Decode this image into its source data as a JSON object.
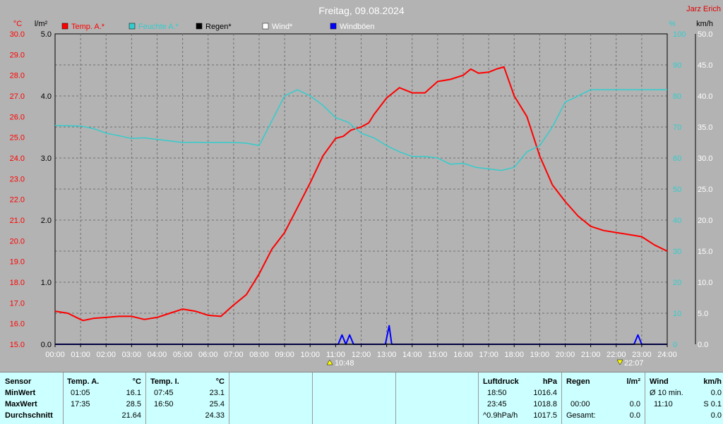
{
  "header": {
    "title": "Freitag, 09.08.2024",
    "author": "Jarz Erich",
    "unit_temp": "°C",
    "unit_rain": "l/m²",
    "unit_humidity": "%",
    "unit_wind": "km/h"
  },
  "legend": [
    {
      "label": "Temp. A.*",
      "color": "#ff0000"
    },
    {
      "label": "Feuchte A.*",
      "color": "#33cccc"
    },
    {
      "label": "Regen*",
      "color": "#000000"
    },
    {
      "label": "Wind*",
      "color": "#ffffff"
    },
    {
      "label": "Windböen",
      "color": "#0000ff"
    }
  ],
  "markers": {
    "sunrise": "10:48",
    "sunset": "22:07"
  },
  "chart_data": {
    "type": "line",
    "title": "Freitag, 09.08.2024",
    "x_ticks": [
      "00:00",
      "01:00",
      "02:00",
      "03:00",
      "04:00",
      "05:00",
      "06:00",
      "07:00",
      "08:00",
      "09:00",
      "10:00",
      "11:00",
      "12:00",
      "13:00",
      "14:00",
      "15:00",
      "16:00",
      "17:00",
      "18:00",
      "19:00",
      "20:00",
      "21:00",
      "22:00",
      "23:00",
      "24:00"
    ],
    "xlim": [
      0,
      24
    ],
    "axes": {
      "temp": {
        "label": "°C",
        "ylim": [
          15,
          30
        ],
        "ticks": [
          "15.0",
          "16.0",
          "17.0",
          "18.0",
          "19.0",
          "20.0",
          "21.0",
          "22.0",
          "23.0",
          "24.0",
          "25.0",
          "26.0",
          "27.0",
          "28.0",
          "29.0",
          "30.0"
        ]
      },
      "rain": {
        "label": "l/m²",
        "ylim": [
          0,
          5
        ],
        "ticks": [
          "0.0",
          "1.0",
          "2.0",
          "3.0",
          "4.0",
          "5.0"
        ]
      },
      "humidity": {
        "label": "%",
        "ylim": [
          0,
          100
        ],
        "ticks": [
          "0",
          "10",
          "20",
          "30",
          "40",
          "50",
          "60",
          "70",
          "80",
          "90",
          "100"
        ]
      },
      "wind": {
        "label": "km/h",
        "ylim": [
          0,
          50
        ],
        "ticks": [
          "0.0",
          "5.0",
          "10.0",
          "15.0",
          "20.0",
          "25.0",
          "30.0",
          "35.0",
          "40.0",
          "45.0",
          "50.0"
        ]
      }
    },
    "grid": true,
    "series": [
      {
        "name": "Temp. A.*",
        "axis": "temp",
        "color": "#ff0000",
        "x": [
          0,
          0.5,
          1,
          1.1,
          1.5,
          2,
          2.5,
          3,
          3.5,
          4,
          4.5,
          5,
          5.5,
          6,
          6.5,
          7,
          7.5,
          8,
          8.5,
          9,
          9.5,
          10,
          10.5,
          11,
          11.3,
          11.6,
          12,
          12.3,
          12.5,
          13,
          13.5,
          14,
          14.5,
          15,
          15.5,
          16,
          16.3,
          16.6,
          17,
          17.3,
          17.6,
          18,
          18.5,
          19,
          19.5,
          20,
          20.5,
          21,
          21.5,
          22,
          22.5,
          23,
          23.5,
          24
        ],
        "y": [
          16.6,
          16.5,
          16.2,
          16.15,
          16.25,
          16.3,
          16.35,
          16.35,
          16.2,
          16.3,
          16.5,
          16.7,
          16.6,
          16.4,
          16.35,
          16.9,
          17.4,
          18.4,
          19.6,
          20.4,
          21.6,
          22.8,
          24.1,
          24.95,
          25.05,
          25.35,
          25.5,
          25.7,
          26.1,
          26.9,
          27.4,
          27.15,
          27.15,
          27.7,
          27.8,
          28.0,
          28.3,
          28.1,
          28.15,
          28.3,
          28.4,
          27.0,
          26.0,
          24.1,
          22.7,
          21.9,
          21.2,
          20.7,
          20.5,
          20.4,
          20.3,
          20.2,
          19.8,
          19.5
        ]
      },
      {
        "name": "Feuchte A.*",
        "axis": "humidity",
        "color": "#33cccc",
        "x": [
          0,
          1,
          1.5,
          2,
          2.5,
          3,
          3.5,
          4,
          4.5,
          5,
          5.5,
          6,
          6.5,
          7,
          7.5,
          8,
          8.5,
          9,
          9.5,
          10,
          10.5,
          11,
          11.5,
          12,
          12.5,
          13,
          13.5,
          14,
          14.5,
          15,
          15.5,
          16,
          16.5,
          17,
          17.5,
          18,
          18.5,
          19,
          19.5,
          20,
          20.5,
          21,
          21.5,
          22,
          22.5,
          23,
          23.5,
          24
        ],
        "y": [
          70.5,
          70.3,
          69.5,
          68,
          67.2,
          66.3,
          66.5,
          66,
          65.5,
          65,
          65.1,
          65,
          65,
          65,
          64.8,
          64,
          72,
          80,
          82,
          80,
          77,
          73,
          71.5,
          68,
          66.5,
          64,
          62,
          60.5,
          60.5,
          60,
          58,
          58.3,
          57,
          56.5,
          56,
          57,
          62,
          64,
          70,
          78,
          80,
          82,
          82,
          82,
          82,
          82,
          82,
          82
        ]
      },
      {
        "name": "Windböen",
        "axis": "wind",
        "color": "#0000ff",
        "x": [
          0,
          10.95,
          11.1,
          11.25,
          11.4,
          11.55,
          11.7,
          11.85,
          12.0,
          12.95,
          13.1,
          13.2,
          13.35,
          22.7,
          22.85,
          23.0,
          24
        ],
        "y": [
          0,
          0,
          0,
          1.5,
          0,
          1.5,
          0,
          0,
          0,
          0,
          3.0,
          0,
          0,
          0,
          1.5,
          0,
          0
        ]
      },
      {
        "name": "Regen*",
        "axis": "rain",
        "color": "#000000",
        "x": [
          0,
          24
        ],
        "y": [
          0,
          0
        ]
      }
    ]
  },
  "table": {
    "sensor_header": "Sensor",
    "row_labels": [
      "MinWert",
      "MaxWert",
      "Durchschnitt"
    ],
    "temp_a": {
      "header": "Temp. A.",
      "unit": "°C",
      "times": [
        "01:05",
        "17:35",
        ""
      ],
      "values": [
        "16.1",
        "28.5",
        "21.64"
      ]
    },
    "temp_i": {
      "header": "Temp. I.",
      "unit": "°C",
      "times": [
        "07:45",
        "16:50",
        ""
      ],
      "values": [
        "23.1",
        "25.4",
        "24.33"
      ]
    },
    "luftdruck": {
      "header": "Luftdruck",
      "unit": "hPa",
      "times": [
        "18:50",
        "23:45",
        "^0.9hPa/h"
      ],
      "values": [
        "1016.4",
        "1018.8",
        "1017.5"
      ]
    },
    "regen": {
      "header": "Regen",
      "unit": "l/m²",
      "times": [
        "",
        "00:00",
        "Gesamt:"
      ],
      "values": [
        "",
        "0.0",
        "0.0"
      ]
    },
    "wind": {
      "header": "Wind",
      "unit": "km/h",
      "times": [
        "Ø 10 min.",
        "11:10",
        ""
      ],
      "values": [
        "0.0",
        "S 0.1",
        "0.0"
      ]
    }
  }
}
